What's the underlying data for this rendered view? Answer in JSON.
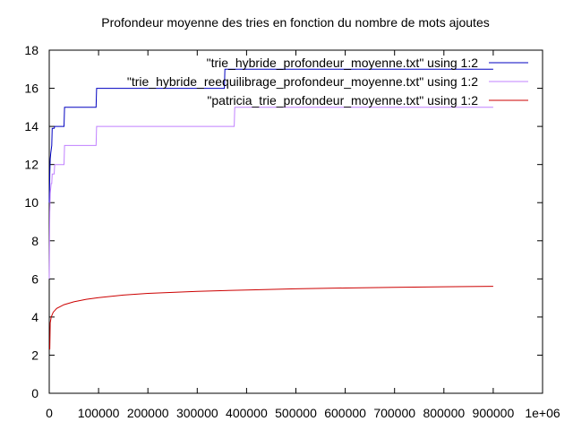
{
  "chart_data": {
    "type": "line",
    "title": "Profondeur moyenne des tries en fonction du nombre de mots ajoutes",
    "xlabel": "",
    "ylabel": "",
    "xlim": [
      0,
      1000000
    ],
    "ylim": [
      0,
      18
    ],
    "grid": false,
    "legend_position": "top-right",
    "x_ticks": [
      {
        "value": 0,
        "label": "0"
      },
      {
        "value": 100000,
        "label": "100000"
      },
      {
        "value": 200000,
        "label": "200000"
      },
      {
        "value": 300000,
        "label": "300000"
      },
      {
        "value": 400000,
        "label": "400000"
      },
      {
        "value": 500000,
        "label": "500000"
      },
      {
        "value": 600000,
        "label": "600000"
      },
      {
        "value": 700000,
        "label": "700000"
      },
      {
        "value": 800000,
        "label": "800000"
      },
      {
        "value": 900000,
        "label": "900000"
      },
      {
        "value": 1000000,
        "label": "1e+06"
      }
    ],
    "y_ticks": [
      {
        "value": 0,
        "label": "0"
      },
      {
        "value": 2,
        "label": "2"
      },
      {
        "value": 4,
        "label": "4"
      },
      {
        "value": 6,
        "label": "6"
      },
      {
        "value": 8,
        "label": "8"
      },
      {
        "value": 10,
        "label": "10"
      },
      {
        "value": 12,
        "label": "12"
      },
      {
        "value": 14,
        "label": "14"
      },
      {
        "value": 16,
        "label": "16"
      },
      {
        "value": 18,
        "label": "18"
      }
    ],
    "series": [
      {
        "name": "\"trie_hybride_profondeur_moyenne.txt\" using 1:2",
        "color": "#0000c0",
        "x": [
          0,
          500,
          1000,
          2000,
          3000,
          5000,
          6000,
          10000,
          11000,
          30000,
          31000,
          95000,
          96000,
          355000,
          356000,
          900000
        ],
        "y": [
          10,
          10.5,
          11.5,
          12.3,
          12.6,
          13,
          13.9,
          13.9,
          14,
          14,
          15,
          15,
          16,
          16,
          17,
          17
        ]
      },
      {
        "name": "\"trie_hybride_reequilibrage_profondeur_moyenne.txt\" using 1:2",
        "color": "#c080ff",
        "x": [
          0,
          1000,
          2000,
          4000,
          5000,
          6000,
          10000,
          11000,
          30000,
          31000,
          95000,
          96000,
          375000,
          376000,
          900000
        ],
        "y": [
          6,
          9.5,
          10.5,
          11,
          11,
          11.5,
          11.5,
          12,
          12,
          13,
          13,
          14,
          14,
          15,
          15
        ]
      },
      {
        "name": "\"patricia_trie_profondeur_moyenne.txt\" using 1:2",
        "color": "#cc0000",
        "x": [
          1000,
          2000,
          4000,
          8000,
          15000,
          30000,
          50000,
          75000,
          100000,
          150000,
          200000,
          300000,
          400000,
          500000,
          600000,
          700000,
          800000,
          900000
        ],
        "y": [
          2.3,
          3.7,
          4.0,
          4.25,
          4.45,
          4.65,
          4.8,
          4.93,
          5.02,
          5.15,
          5.24,
          5.35,
          5.42,
          5.48,
          5.52,
          5.56,
          5.59,
          5.61
        ]
      }
    ]
  }
}
